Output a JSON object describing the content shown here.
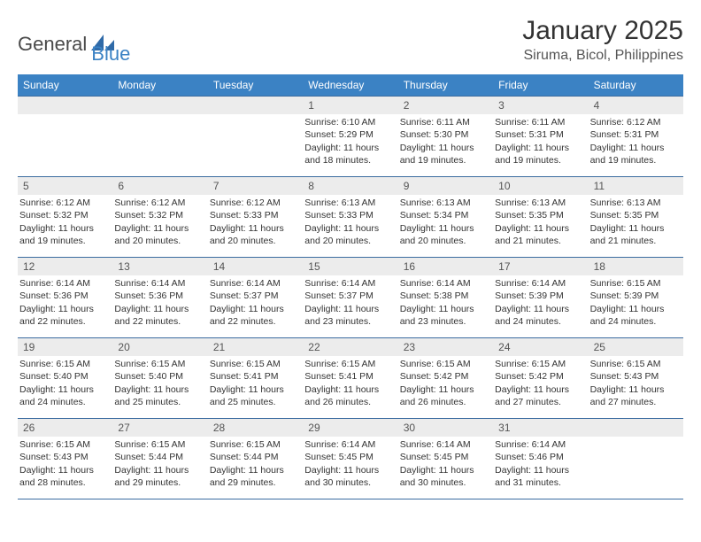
{
  "brand": {
    "general": "General",
    "blue": "Blue"
  },
  "title": "January 2025",
  "location": "Siruma, Bicol, Philippines",
  "colors": {
    "header_bar": "#3b82c4",
    "daynum_bg": "#ececec",
    "rule": "#3b6ca0",
    "text": "#333333",
    "logo_blue": "#3b82c4"
  },
  "weekdays": [
    "Sunday",
    "Monday",
    "Tuesday",
    "Wednesday",
    "Thursday",
    "Friday",
    "Saturday"
  ],
  "weeks": [
    [
      {
        "n": "",
        "sunrise": "",
        "sunset": "",
        "daylight": ""
      },
      {
        "n": "",
        "sunrise": "",
        "sunset": "",
        "daylight": ""
      },
      {
        "n": "",
        "sunrise": "",
        "sunset": "",
        "daylight": ""
      },
      {
        "n": "1",
        "sunrise": "Sunrise: 6:10 AM",
        "sunset": "Sunset: 5:29 PM",
        "daylight": "Daylight: 11 hours and 18 minutes."
      },
      {
        "n": "2",
        "sunrise": "Sunrise: 6:11 AM",
        "sunset": "Sunset: 5:30 PM",
        "daylight": "Daylight: 11 hours and 19 minutes."
      },
      {
        "n": "3",
        "sunrise": "Sunrise: 6:11 AM",
        "sunset": "Sunset: 5:31 PM",
        "daylight": "Daylight: 11 hours and 19 minutes."
      },
      {
        "n": "4",
        "sunrise": "Sunrise: 6:12 AM",
        "sunset": "Sunset: 5:31 PM",
        "daylight": "Daylight: 11 hours and 19 minutes."
      }
    ],
    [
      {
        "n": "5",
        "sunrise": "Sunrise: 6:12 AM",
        "sunset": "Sunset: 5:32 PM",
        "daylight": "Daylight: 11 hours and 19 minutes."
      },
      {
        "n": "6",
        "sunrise": "Sunrise: 6:12 AM",
        "sunset": "Sunset: 5:32 PM",
        "daylight": "Daylight: 11 hours and 20 minutes."
      },
      {
        "n": "7",
        "sunrise": "Sunrise: 6:12 AM",
        "sunset": "Sunset: 5:33 PM",
        "daylight": "Daylight: 11 hours and 20 minutes."
      },
      {
        "n": "8",
        "sunrise": "Sunrise: 6:13 AM",
        "sunset": "Sunset: 5:33 PM",
        "daylight": "Daylight: 11 hours and 20 minutes."
      },
      {
        "n": "9",
        "sunrise": "Sunrise: 6:13 AM",
        "sunset": "Sunset: 5:34 PM",
        "daylight": "Daylight: 11 hours and 20 minutes."
      },
      {
        "n": "10",
        "sunrise": "Sunrise: 6:13 AM",
        "sunset": "Sunset: 5:35 PM",
        "daylight": "Daylight: 11 hours and 21 minutes."
      },
      {
        "n": "11",
        "sunrise": "Sunrise: 6:13 AM",
        "sunset": "Sunset: 5:35 PM",
        "daylight": "Daylight: 11 hours and 21 minutes."
      }
    ],
    [
      {
        "n": "12",
        "sunrise": "Sunrise: 6:14 AM",
        "sunset": "Sunset: 5:36 PM",
        "daylight": "Daylight: 11 hours and 22 minutes."
      },
      {
        "n": "13",
        "sunrise": "Sunrise: 6:14 AM",
        "sunset": "Sunset: 5:36 PM",
        "daylight": "Daylight: 11 hours and 22 minutes."
      },
      {
        "n": "14",
        "sunrise": "Sunrise: 6:14 AM",
        "sunset": "Sunset: 5:37 PM",
        "daylight": "Daylight: 11 hours and 22 minutes."
      },
      {
        "n": "15",
        "sunrise": "Sunrise: 6:14 AM",
        "sunset": "Sunset: 5:37 PM",
        "daylight": "Daylight: 11 hours and 23 minutes."
      },
      {
        "n": "16",
        "sunrise": "Sunrise: 6:14 AM",
        "sunset": "Sunset: 5:38 PM",
        "daylight": "Daylight: 11 hours and 23 minutes."
      },
      {
        "n": "17",
        "sunrise": "Sunrise: 6:14 AM",
        "sunset": "Sunset: 5:39 PM",
        "daylight": "Daylight: 11 hours and 24 minutes."
      },
      {
        "n": "18",
        "sunrise": "Sunrise: 6:15 AM",
        "sunset": "Sunset: 5:39 PM",
        "daylight": "Daylight: 11 hours and 24 minutes."
      }
    ],
    [
      {
        "n": "19",
        "sunrise": "Sunrise: 6:15 AM",
        "sunset": "Sunset: 5:40 PM",
        "daylight": "Daylight: 11 hours and 24 minutes."
      },
      {
        "n": "20",
        "sunrise": "Sunrise: 6:15 AM",
        "sunset": "Sunset: 5:40 PM",
        "daylight": "Daylight: 11 hours and 25 minutes."
      },
      {
        "n": "21",
        "sunrise": "Sunrise: 6:15 AM",
        "sunset": "Sunset: 5:41 PM",
        "daylight": "Daylight: 11 hours and 25 minutes."
      },
      {
        "n": "22",
        "sunrise": "Sunrise: 6:15 AM",
        "sunset": "Sunset: 5:41 PM",
        "daylight": "Daylight: 11 hours and 26 minutes."
      },
      {
        "n": "23",
        "sunrise": "Sunrise: 6:15 AM",
        "sunset": "Sunset: 5:42 PM",
        "daylight": "Daylight: 11 hours and 26 minutes."
      },
      {
        "n": "24",
        "sunrise": "Sunrise: 6:15 AM",
        "sunset": "Sunset: 5:42 PM",
        "daylight": "Daylight: 11 hours and 27 minutes."
      },
      {
        "n": "25",
        "sunrise": "Sunrise: 6:15 AM",
        "sunset": "Sunset: 5:43 PM",
        "daylight": "Daylight: 11 hours and 27 minutes."
      }
    ],
    [
      {
        "n": "26",
        "sunrise": "Sunrise: 6:15 AM",
        "sunset": "Sunset: 5:43 PM",
        "daylight": "Daylight: 11 hours and 28 minutes."
      },
      {
        "n": "27",
        "sunrise": "Sunrise: 6:15 AM",
        "sunset": "Sunset: 5:44 PM",
        "daylight": "Daylight: 11 hours and 29 minutes."
      },
      {
        "n": "28",
        "sunrise": "Sunrise: 6:15 AM",
        "sunset": "Sunset: 5:44 PM",
        "daylight": "Daylight: 11 hours and 29 minutes."
      },
      {
        "n": "29",
        "sunrise": "Sunrise: 6:14 AM",
        "sunset": "Sunset: 5:45 PM",
        "daylight": "Daylight: 11 hours and 30 minutes."
      },
      {
        "n": "30",
        "sunrise": "Sunrise: 6:14 AM",
        "sunset": "Sunset: 5:45 PM",
        "daylight": "Daylight: 11 hours and 30 minutes."
      },
      {
        "n": "31",
        "sunrise": "Sunrise: 6:14 AM",
        "sunset": "Sunset: 5:46 PM",
        "daylight": "Daylight: 11 hours and 31 minutes."
      },
      {
        "n": "",
        "sunrise": "",
        "sunset": "",
        "daylight": ""
      }
    ]
  ]
}
